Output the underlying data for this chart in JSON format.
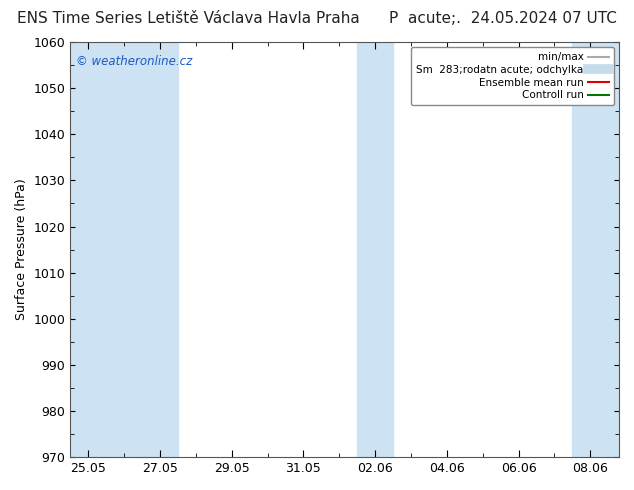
{
  "title": "ENS Time Series Letiště Václava Havla Praha",
  "title2": "P  acute;.  24.05.2024 07 UTC",
  "ylabel": "Surface Pressure (hPa)",
  "ylim": [
    970,
    1060
  ],
  "yticks": [
    970,
    980,
    990,
    1000,
    1010,
    1020,
    1030,
    1040,
    1050,
    1060
  ],
  "xtick_labels": [
    "25.05",
    "27.05",
    "29.05",
    "31.05",
    "02.06",
    "04.06",
    "06.06",
    "08.06"
  ],
  "xtick_positions": [
    0,
    2,
    4,
    6,
    8,
    10,
    12,
    14
  ],
  "xlim": [
    -0.5,
    14.8
  ],
  "shaded_bands": [
    {
      "x_start": -0.5,
      "x_end": 2.5
    },
    {
      "x_start": 7.5,
      "x_end": 8.5
    },
    {
      "x_start": 13.5,
      "x_end": 14.8
    }
  ],
  "band_color": "#cde3f3",
  "bg_color": "#ffffff",
  "plot_bg": "#ffffff",
  "legend_entries": [
    {
      "label": "min/max",
      "color": "#aaaaaa",
      "lw": 1.5,
      "ls": "-"
    },
    {
      "label": "Sm  283;rodatn acute; odchylka",
      "color": "#c5dced",
      "lw": 7,
      "ls": "-"
    },
    {
      "label": "Ensemble mean run",
      "color": "#dd0000",
      "lw": 1.5,
      "ls": "-"
    },
    {
      "label": "Controll run",
      "color": "#007700",
      "lw": 1.5,
      "ls": "-"
    }
  ],
  "watermark": "© weatheronline.cz",
  "watermark_color": "#1a5abf",
  "title_fontsize": 11,
  "axis_fontsize": 9,
  "tick_fontsize": 9
}
